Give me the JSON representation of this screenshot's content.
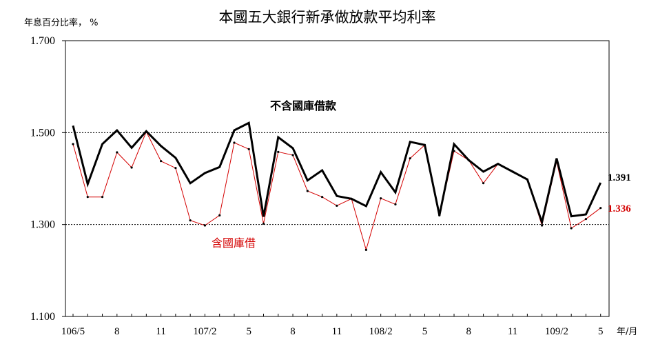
{
  "chart_data": {
    "type": "line",
    "title": "本國五大銀行新承做放款平均利率",
    "ylabel": "年息百分比率， %",
    "xlabel": "年/月",
    "ylim": [
      1.1,
      1.7
    ],
    "yticks": [
      "1.700",
      "1.500",
      "1.300",
      "1.100"
    ],
    "ytick_values": [
      1.7,
      1.5,
      1.3,
      1.1
    ],
    "dashed_gridlines": [
      1.5,
      1.3
    ],
    "xtick_labels": [
      "106/5",
      "8",
      "11",
      "107/2",
      "5",
      "8",
      "11",
      "108/2",
      "5",
      "8",
      "11",
      "109/2",
      "5"
    ],
    "xtick_indices": [
      0,
      3,
      6,
      9,
      12,
      15,
      18,
      21,
      24,
      27,
      30,
      33,
      36
    ],
    "series": [
      {
        "name": "不含國庫借款",
        "color": "#000000",
        "end_label": "1.391",
        "values": [
          1.515,
          1.388,
          1.475,
          1.505,
          1.467,
          1.503,
          1.471,
          1.445,
          1.39,
          1.412,
          1.425,
          1.505,
          1.521,
          1.317,
          1.49,
          1.466,
          1.396,
          1.418,
          1.362,
          1.356,
          1.34,
          1.414,
          1.37,
          1.48,
          1.473,
          1.32,
          1.475,
          1.44,
          1.415,
          1.432,
          1.415,
          1.398,
          1.305,
          1.444,
          1.318,
          1.322,
          1.391
        ]
      },
      {
        "name": "含國庫借",
        "color": "#d40000",
        "end_label": "1.336",
        "values": [
          1.475,
          1.36,
          1.36,
          1.457,
          1.424,
          1.502,
          1.438,
          1.423,
          1.309,
          1.298,
          1.32,
          1.478,
          1.464,
          1.302,
          1.458,
          1.451,
          1.373,
          1.36,
          1.341,
          1.356,
          1.245,
          1.357,
          1.344,
          1.444,
          1.473,
          1.32,
          1.46,
          1.44,
          1.39,
          1.432,
          1.415,
          1.398,
          1.298,
          1.437,
          1.292,
          1.312,
          1.336
        ]
      }
    ],
    "grid": false
  }
}
